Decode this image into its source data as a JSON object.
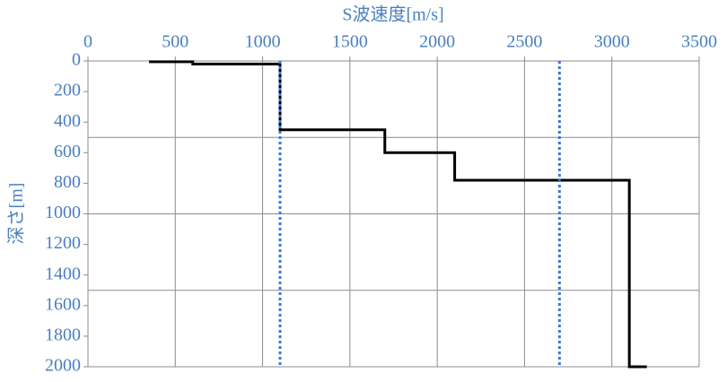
{
  "chart_data": {
    "type": "line",
    "title": "S波速度[m/s]",
    "ylabel": "深さ[m]",
    "xlim": [
      0,
      3500
    ],
    "xticks": [
      0,
      500,
      1000,
      1500,
      2000,
      2500,
      3000,
      3500
    ],
    "ylim": [
      0,
      2000
    ],
    "yticks": [
      0,
      200,
      400,
      600,
      800,
      1000,
      1200,
      1400,
      1600,
      1800,
      2000
    ],
    "y_inverted": true,
    "y_gridlines": [
      500,
      1000,
      1500,
      2000
    ],
    "grid": true,
    "series": [
      {
        "color": "#000000",
        "style": "solid",
        "x": [
          350,
          600,
          600,
          1100,
          1100,
          1700,
          1700,
          2100,
          2100,
          3100,
          3100,
          3200
        ],
        "values": [
          5,
          5,
          20,
          20,
          450,
          450,
          600,
          600,
          780,
          780,
          2000,
          2000
        ]
      },
      {
        "color": "#3a78d4",
        "style": "dotted",
        "x": [
          1100,
          1100
        ],
        "values": [
          0,
          2000
        ]
      },
      {
        "color": "#3a78d4",
        "style": "dotted",
        "x": [
          2700,
          2700
        ],
        "values": [
          0,
          2000
        ]
      }
    ]
  }
}
